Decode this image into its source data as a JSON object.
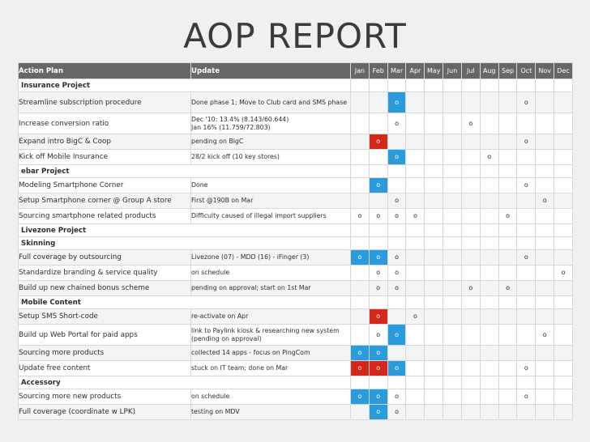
{
  "title": "AOP REPORT",
  "header": {
    "action_plan": "Action Plan",
    "update": "Update",
    "months": [
      "Jan",
      "Feb",
      "Mar",
      "Apr",
      "May",
      "Jun",
      "Jul",
      "Aug",
      "Sep",
      "Oct",
      "Nov",
      "Dec"
    ]
  },
  "mark_symbol": "o",
  "colors": {
    "blue": "#2a9bdc",
    "red": "#d6271b",
    "header": "#666769"
  },
  "rows": [
    {
      "type": "section",
      "label": "Insurance Project"
    },
    {
      "type": "item",
      "action": "Streamline subscription procedure",
      "update": "Done phase 1; Move to Club card and SMS phase",
      "tall": true,
      "marks": [
        {
          "m": 2,
          "c": "blue"
        },
        {
          "m": 9,
          "c": ""
        }
      ]
    },
    {
      "type": "item",
      "action": "Increase conversion ratio",
      "update": "Dec '10: 13.4% (8.143/60.644)\nJan 16% (11.759/72.803)",
      "tall": true,
      "marks": [
        {
          "m": 2,
          "c": ""
        },
        {
          "m": 6,
          "c": ""
        }
      ]
    },
    {
      "type": "item",
      "action": "Expand intro BigC & Coop",
      "update": "pending on BigC",
      "marks": [
        {
          "m": 1,
          "c": "red"
        },
        {
          "m": 9,
          "c": ""
        }
      ]
    },
    {
      "type": "item",
      "action": "Kick off Mobile Insurance",
      "update": "28/2 kick off (10 key stores)",
      "marks": [
        {
          "m": 2,
          "c": "blue"
        },
        {
          "m": 7,
          "c": ""
        }
      ]
    },
    {
      "type": "section",
      "label": "ebar Project"
    },
    {
      "type": "item",
      "action": "Modeling Smartphone Corner",
      "update": "Done",
      "marks": [
        {
          "m": 1,
          "c": "blue"
        },
        {
          "m": 9,
          "c": ""
        }
      ]
    },
    {
      "type": "item",
      "action": "Setup Smartphone corner @ Group A store",
      "update": "First @190B on Mar",
      "marks": [
        {
          "m": 2,
          "c": ""
        },
        {
          "m": 10,
          "c": ""
        }
      ]
    },
    {
      "type": "item",
      "action": "Sourcing smartphone related products",
      "update": "Difficulty caused of illegal import suppliers",
      "marks": [
        {
          "m": 0,
          "c": ""
        },
        {
          "m": 1,
          "c": ""
        },
        {
          "m": 2,
          "c": ""
        },
        {
          "m": 3,
          "c": ""
        },
        {
          "m": 8,
          "c": ""
        }
      ]
    },
    {
      "type": "section",
      "label": "Livezone Project"
    },
    {
      "type": "section",
      "label": "Skinning"
    },
    {
      "type": "item",
      "action": "Full coverage by outsourcing",
      "update": "Livezone (07) - MDD (16) - iFinger (3)",
      "marks": [
        {
          "m": 0,
          "c": "blue"
        },
        {
          "m": 1,
          "c": "blue"
        },
        {
          "m": 2,
          "c": ""
        },
        {
          "m": 9,
          "c": ""
        }
      ]
    },
    {
      "type": "item",
      "action": "Standardize branding & service quality",
      "update": "on schedule",
      "marks": [
        {
          "m": 1,
          "c": ""
        },
        {
          "m": 2,
          "c": ""
        },
        {
          "m": 11,
          "c": ""
        }
      ]
    },
    {
      "type": "item",
      "action": "Build up new chained bonus scheme",
      "update": "pending on approval; start on 1st Mar",
      "marks": [
        {
          "m": 1,
          "c": ""
        },
        {
          "m": 2,
          "c": ""
        },
        {
          "m": 6,
          "c": ""
        },
        {
          "m": 8,
          "c": ""
        }
      ]
    },
    {
      "type": "section",
      "label": "Mobile Content"
    },
    {
      "type": "item",
      "action": "Setup SMS Short-code",
      "update": "re-activate on Apr",
      "marks": [
        {
          "m": 1,
          "c": "red"
        },
        {
          "m": 3,
          "c": ""
        }
      ]
    },
    {
      "type": "item",
      "action": "Build up Web Portal for paid apps",
      "update": "link to Paylink kiosk & researching new system (pending on approval)",
      "tall": true,
      "marks": [
        {
          "m": 1,
          "c": ""
        },
        {
          "m": 2,
          "c": "blue"
        },
        {
          "m": 10,
          "c": ""
        }
      ]
    },
    {
      "type": "item",
      "action": "Sourcing more products",
      "update": "collected 14 apps - focus on PingCom",
      "marks": [
        {
          "m": 0,
          "c": "blue"
        },
        {
          "m": 1,
          "c": "blue"
        }
      ]
    },
    {
      "type": "item",
      "action": "Update free content",
      "update": "stuck on IT team; done on Mar",
      "marks": [
        {
          "m": 0,
          "c": "red"
        },
        {
          "m": 1,
          "c": "red"
        },
        {
          "m": 2,
          "c": "blue"
        },
        {
          "m": 9,
          "c": ""
        }
      ]
    },
    {
      "type": "section",
      "label": "Accessory"
    },
    {
      "type": "item",
      "action": "Sourcing more new products",
      "update": "on schedule",
      "marks": [
        {
          "m": 0,
          "c": "blue"
        },
        {
          "m": 1,
          "c": "blue"
        },
        {
          "m": 2,
          "c": ""
        },
        {
          "m": 9,
          "c": ""
        }
      ]
    },
    {
      "type": "item",
      "action": "Full coverage (coordinate w LPK)",
      "update": "testing on MDV",
      "marks": [
        {
          "m": 1,
          "c": "blue"
        },
        {
          "m": 2,
          "c": ""
        }
      ]
    }
  ]
}
